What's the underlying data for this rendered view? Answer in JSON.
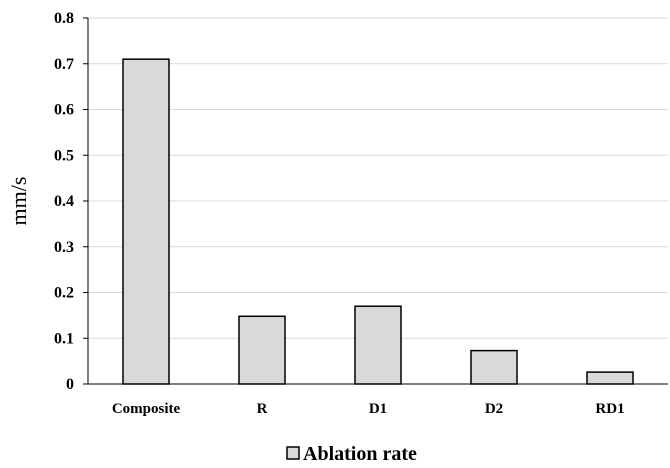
{
  "chart_data": {
    "type": "bar",
    "categories": [
      "Composite",
      "R",
      "D1",
      "D2",
      "RD1"
    ],
    "series": [
      {
        "name": "Ablation rate",
        "values": [
          0.71,
          0.148,
          0.17,
          0.073,
          0.026
        ]
      }
    ],
    "ylabel": "mm/s",
    "ylim": [
      0,
      0.8
    ],
    "yticks": [
      "0",
      "0.1",
      "0.2",
      "0.3",
      "0.4",
      "0.5",
      "0.6",
      "0.7",
      "0.8"
    ],
    "grid": true,
    "legend": "bottom",
    "colors": {
      "bar_fill": "#d9d9d9",
      "bar_stroke": "#000000",
      "grid": "#d9d9d9",
      "axis": "#000000"
    }
  }
}
